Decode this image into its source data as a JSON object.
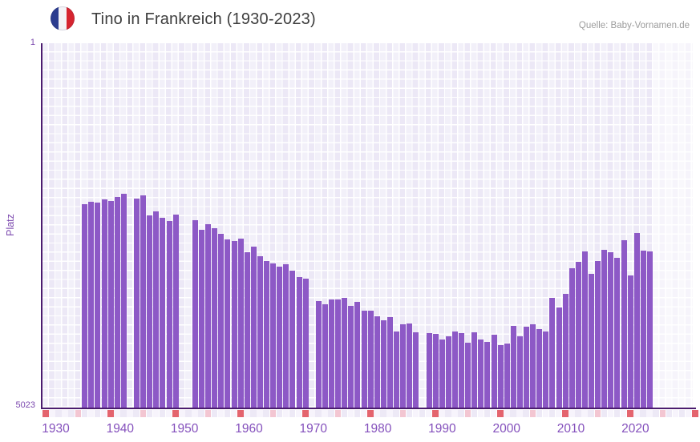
{
  "header": {
    "title": "Tino in Frankreich (1930-2023)",
    "source": "Quelle: Baby-Vornamen.de"
  },
  "y_axis": {
    "label": "Platz",
    "top_tick": "1",
    "bottom_tick": "5023"
  },
  "x_axis": {
    "ticks": [
      "1930",
      "1940",
      "1950",
      "1960",
      "1970",
      "1980",
      "1990",
      "2000",
      "2010",
      "2020"
    ]
  },
  "chart_data": {
    "type": "bar",
    "title": "Tino in Frankreich (1930-2023)",
    "ylabel": "Platz",
    "ylim": [
      1,
      5023
    ],
    "y_inverted": true,
    "x_range": [
      1930,
      2030
    ],
    "grid": true,
    "bar_color": "#8d59c6",
    "points_format": [
      "year",
      "rank"
    ],
    "points": [
      [
        1936,
        2218
      ],
      [
        1937,
        2185
      ],
      [
        1938,
        2196
      ],
      [
        1939,
        2152
      ],
      [
        1940,
        2174
      ],
      [
        1941,
        2118
      ],
      [
        1942,
        2074
      ],
      [
        1944,
        2141
      ],
      [
        1945,
        2096
      ],
      [
        1946,
        2373
      ],
      [
        1947,
        2318
      ],
      [
        1948,
        2407
      ],
      [
        1949,
        2451
      ],
      [
        1950,
        2362
      ],
      [
        1953,
        2440
      ],
      [
        1954,
        2573
      ],
      [
        1955,
        2495
      ],
      [
        1956,
        2551
      ],
      [
        1957,
        2628
      ],
      [
        1958,
        2706
      ],
      [
        1959,
        2728
      ],
      [
        1960,
        2695
      ],
      [
        1961,
        2883
      ],
      [
        1962,
        2806
      ],
      [
        1963,
        2939
      ],
      [
        1964,
        3005
      ],
      [
        1965,
        3038
      ],
      [
        1966,
        3083
      ],
      [
        1967,
        3049
      ],
      [
        1968,
        3138
      ],
      [
        1969,
        3227
      ],
      [
        1970,
        3249
      ],
      [
        1972,
        3560
      ],
      [
        1973,
        3604
      ],
      [
        1974,
        3537
      ],
      [
        1975,
        3537
      ],
      [
        1976,
        3515
      ],
      [
        1977,
        3626
      ],
      [
        1978,
        3571
      ],
      [
        1979,
        3682
      ],
      [
        1980,
        3682
      ],
      [
        1981,
        3770
      ],
      [
        1982,
        3815
      ],
      [
        1983,
        3781
      ],
      [
        1984,
        3970
      ],
      [
        1985,
        3870
      ],
      [
        1986,
        3859
      ],
      [
        1987,
        3981
      ],
      [
        1989,
        3992
      ],
      [
        1990,
        4003
      ],
      [
        1991,
        4081
      ],
      [
        1992,
        4036
      ],
      [
        1993,
        3970
      ],
      [
        1994,
        3992
      ],
      [
        1995,
        4125
      ],
      [
        1996,
        3981
      ],
      [
        1997,
        4081
      ],
      [
        1998,
        4114
      ],
      [
        1999,
        4014
      ],
      [
        2000,
        4158
      ],
      [
        2001,
        4136
      ],
      [
        2002,
        3892
      ],
      [
        2003,
        4036
      ],
      [
        2004,
        3903
      ],
      [
        2005,
        3870
      ],
      [
        2006,
        3936
      ],
      [
        2007,
        3970
      ],
      [
        2008,
        3515
      ],
      [
        2009,
        3648
      ],
      [
        2010,
        3460
      ],
      [
        2011,
        3105
      ],
      [
        2012,
        3016
      ],
      [
        2013,
        2872
      ],
      [
        2014,
        3183
      ],
      [
        2015,
        3005
      ],
      [
        2016,
        2849
      ],
      [
        2017,
        2883
      ],
      [
        2018,
        2960
      ],
      [
        2019,
        2717
      ],
      [
        2020,
        3205
      ],
      [
        2021,
        2617
      ],
      [
        2022,
        2861
      ],
      [
        2023,
        2872
      ]
    ],
    "missing_years": [
      1930,
      1931,
      1932,
      1933,
      1934,
      1935,
      1943,
      1951,
      1952,
      1971,
      1988
    ],
    "future_zone_years": [
      2024,
      2030
    ],
    "timeline_strip": {
      "decade_color": "#e4646e",
      "half_decade_color": "#f3c6d2",
      "cell_color_even": "#ede9f6",
      "cell_color_odd": "#f7f4fc"
    }
  }
}
